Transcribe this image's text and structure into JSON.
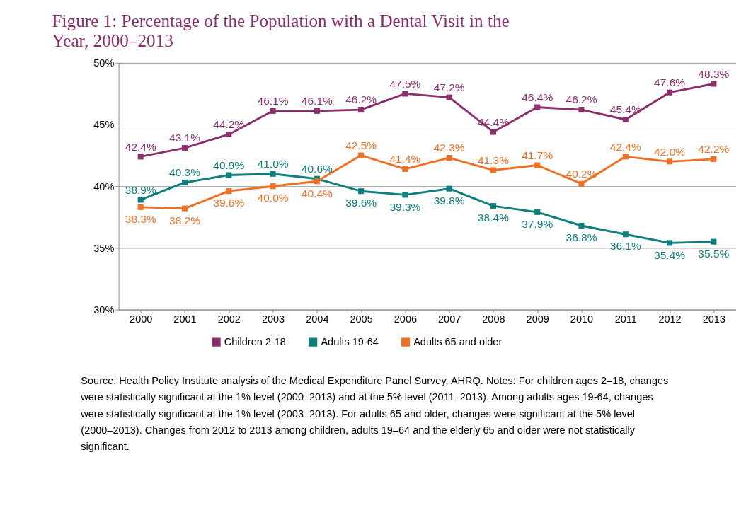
{
  "chart_data": {
    "type": "line",
    "title": "Figure 1: Percentage of the Population with a Dental Visit in the Year, 2000–2013",
    "categories": [
      "2000",
      "2001",
      "2002",
      "2003",
      "2004",
      "2005",
      "2006",
      "2007",
      "2008",
      "2009",
      "2010",
      "2011",
      "2012",
      "2013"
    ],
    "series": [
      {
        "name": "Children 2-18",
        "color": "#8e2d6b",
        "values": [
          42.4,
          43.1,
          44.2,
          46.1,
          46.1,
          46.2,
          47.5,
          47.2,
          44.4,
          46.4,
          46.2,
          45.4,
          47.6,
          48.3
        ],
        "value_labels": [
          "42.4%",
          "43.1%",
          "44.2%",
          "46.1%",
          "46.1%",
          "46.2%",
          "47.5%",
          "47.2%",
          "44.4%",
          "46.4%",
          "46.2%",
          "45.4%",
          "47.6%",
          "48.3%"
        ]
      },
      {
        "name": "Adults 19-64",
        "color": "#0e7f7f",
        "values": [
          38.9,
          40.3,
          40.9,
          41.0,
          40.6,
          39.6,
          39.3,
          39.8,
          38.4,
          37.9,
          36.8,
          36.1,
          35.4,
          35.5
        ],
        "value_labels": [
          "38.9%",
          "40.3%",
          "40.9%",
          "41.0%",
          "40.6%",
          "39.6%",
          "39.3%",
          "39.8%",
          "38.4%",
          "37.9%",
          "36.8%",
          "36.1%",
          "35.4%",
          "35.5%"
        ]
      },
      {
        "name": "Adults 65 and older",
        "color": "#f26f22",
        "values": [
          38.3,
          38.2,
          39.6,
          40.0,
          40.4,
          42.5,
          41.4,
          42.3,
          41.3,
          41.7,
          40.2,
          42.4,
          42.0,
          42.2
        ],
        "value_labels": [
          "38.3%",
          "38.2%",
          "39.6%",
          "40.0%",
          "40.4%",
          "42.5%",
          "41.4%",
          "42.3%",
          "41.3%",
          "41.7%",
          "40.2%",
          "42.4%",
          "42.0%",
          "42.2%"
        ]
      }
    ],
    "ylim": [
      30,
      50
    ],
    "yticks": [
      {
        "value": 30,
        "label": "30%"
      },
      {
        "value": 35,
        "label": "35%"
      },
      {
        "value": 40,
        "label": "40%"
      },
      {
        "value": 45,
        "label": "45%"
      },
      {
        "value": 50,
        "label": "50%"
      }
    ],
    "grid": "y",
    "legend": "bottom",
    "marker": "square",
    "line_style": "solid",
    "annotations": [
      "Source: Health Policy Institute analysis of the Medical Expenditure Panel Survey, AHRQ. Notes: For children ages 2–18, changes were statistically significant at the 1% level (2000–2013) and at the 5% level (2011–2013). Among adults ages 19-64, changes were statistically significant at the 1% level (2003–2013). For adults 65 and older, changes were significant at the 5% level (2000–2013). Changes from 2012 to 2013 among children, adults 19–64 and the elderly 65 and older were not statistically significant."
    ]
  }
}
